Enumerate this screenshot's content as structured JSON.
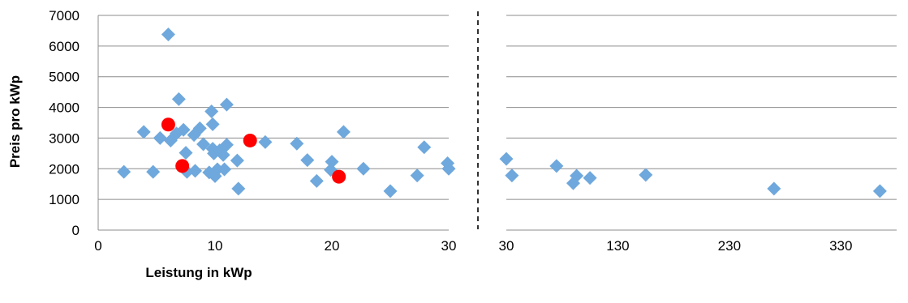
{
  "chart_data": {
    "type": "scatter",
    "title": "",
    "xlabel": "Leistung in kWp",
    "ylabel": "Preis pro kWp",
    "ylim": [
      0,
      7000
    ],
    "yticks": [
      0,
      1000,
      2000,
      3000,
      4000,
      5000,
      6000,
      7000
    ],
    "grid": "horizontal",
    "legend": "none",
    "panels": [
      {
        "name": "left",
        "xlim": [
          0,
          30
        ],
        "xticks": [
          0,
          10,
          20,
          30
        ],
        "series": [
          {
            "marker": "diamond",
            "color": "#6fa8dc",
            "points": [
              [
                2.2,
                1900
              ],
              [
                3.9,
                3200
              ],
              [
                4.7,
                1900
              ],
              [
                5.3,
                3000
              ],
              [
                6.0,
                6380
              ],
              [
                6.2,
                2920
              ],
              [
                6.7,
                3150
              ],
              [
                6.9,
                4270
              ],
              [
                7.3,
                3270
              ],
              [
                7.5,
                2520
              ],
              [
                7.6,
                1900
              ],
              [
                8.2,
                3100
              ],
              [
                8.3,
                1930
              ],
              [
                8.7,
                3320
              ],
              [
                9.0,
                2800
              ],
              [
                9.5,
                1880
              ],
              [
                9.7,
                3870
              ],
              [
                9.8,
                3450
              ],
              [
                9.8,
                2650
              ],
              [
                9.9,
                2500
              ],
              [
                10.0,
                1760
              ],
              [
                10.2,
                1980
              ],
              [
                10.4,
                2600
              ],
              [
                10.7,
                2450
              ],
              [
                10.8,
                1980
              ],
              [
                11.0,
                4090
              ],
              [
                11.0,
                2780
              ],
              [
                11.9,
                2270
              ],
              [
                12.0,
                1350
              ],
              [
                14.3,
                2870
              ],
              [
                17.0,
                2820
              ],
              [
                17.9,
                2280
              ],
              [
                18.7,
                1600
              ],
              [
                19.9,
                1960
              ],
              [
                20.0,
                2230
              ],
              [
                21.0,
                3200
              ],
              [
                22.7,
                2000
              ],
              [
                25.0,
                1270
              ],
              [
                27.3,
                1780
              ],
              [
                27.9,
                2700
              ],
              [
                29.9,
                2180
              ],
              [
                30.0,
                2000
              ]
            ]
          },
          {
            "marker": "circle",
            "color": "#ff0000",
            "points": [
              [
                6.0,
                3440
              ],
              [
                7.2,
                2090
              ],
              [
                13.0,
                2920
              ],
              [
                20.6,
                1740
              ]
            ]
          }
        ]
      },
      {
        "name": "right",
        "xlim": [
          30,
          380
        ],
        "xticks": [
          30,
          130,
          230,
          330
        ],
        "series": [
          {
            "marker": "diamond",
            "color": "#6fa8dc",
            "points": [
              [
                30,
                2320
              ],
              [
                35,
                1780
              ],
              [
                75,
                2090
              ],
              [
                90,
                1530
              ],
              [
                93,
                1770
              ],
              [
                105,
                1700
              ],
              [
                155,
                1800
              ],
              [
                270,
                1350
              ],
              [
                365,
                1270
              ]
            ]
          }
        ]
      }
    ]
  }
}
